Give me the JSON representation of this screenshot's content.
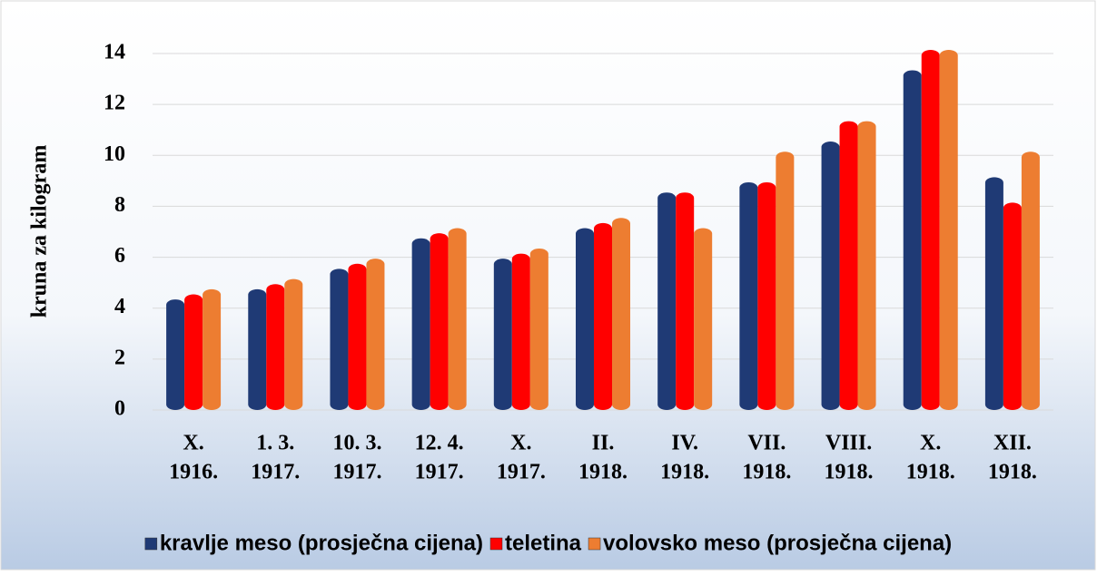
{
  "chart_data": {
    "type": "bar",
    "y_axis_label": "kruna za kilogram",
    "categories": [
      [
        "X.",
        "1916."
      ],
      [
        "1. 3.",
        "1917."
      ],
      [
        "10. 3.",
        "1917."
      ],
      [
        "12. 4.",
        "1917."
      ],
      [
        "X.",
        "1917."
      ],
      [
        "II.",
        "1918."
      ],
      [
        "IV.",
        "1918."
      ],
      [
        "VII.",
        "1918."
      ],
      [
        "VIII.",
        "1918."
      ],
      [
        "X.",
        "1918."
      ],
      [
        "XII.",
        "1918."
      ]
    ],
    "series": [
      {
        "name": "kravlje meso (prosječna cijena)",
        "color": "#1f3a75",
        "values": [
          4.2,
          4.6,
          5.4,
          6.6,
          5.8,
          7.0,
          8.4,
          8.8,
          10.4,
          13.2,
          9.0
        ]
      },
      {
        "name": "teletina",
        "color": "#ff0000",
        "values": [
          4.4,
          4.8,
          5.6,
          6.8,
          6.0,
          7.2,
          8.4,
          8.8,
          11.2,
          14.0,
          8.0
        ]
      },
      {
        "name": "volovsko meso (prosječna cijena)",
        "color": "#ed7d31",
        "values": [
          4.6,
          5.0,
          5.8,
          7.0,
          6.2,
          7.4,
          7.0,
          10.0,
          11.2,
          14.0,
          10.0
        ]
      }
    ],
    "ylim": [
      0,
      14
    ],
    "yticks": [
      0,
      2,
      4,
      6,
      8,
      10,
      12,
      14
    ],
    "grid": true,
    "legend": "bottom"
  }
}
